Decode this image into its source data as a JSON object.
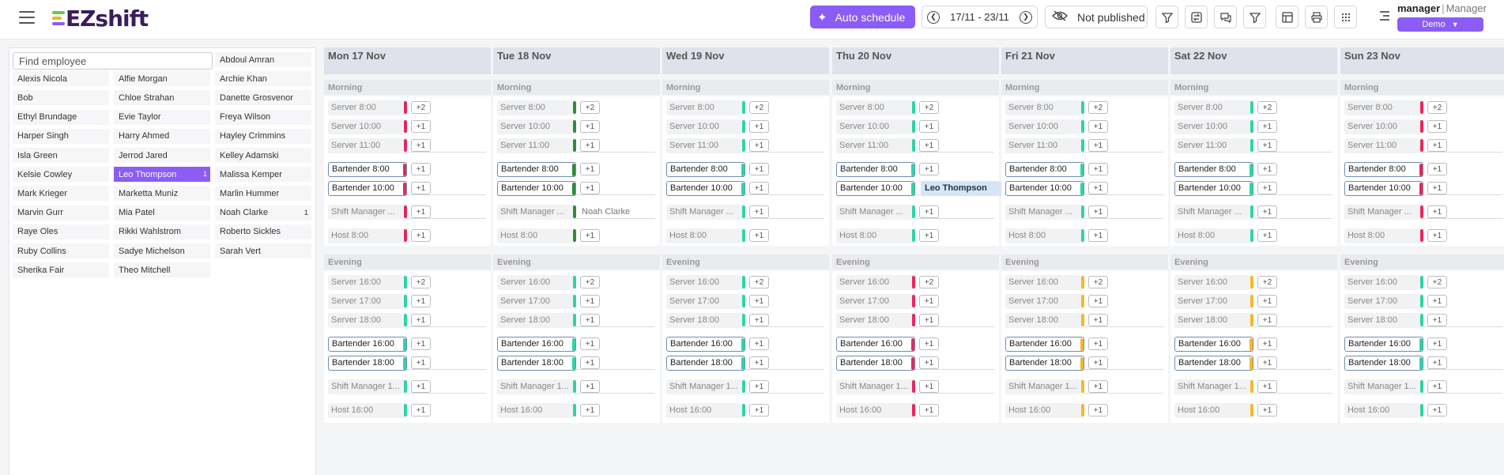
{
  "header": {
    "app_name": "EZshift",
    "auto_schedule_label": "Auto schedule",
    "date_range": "17/11 - 23/11",
    "publish_label": "Not published",
    "user_name": "manager",
    "user_role": "Manager",
    "org_label": "Demo"
  },
  "employee_panel": {
    "search_placeholder": "Find employee",
    "employees": [
      {
        "name": "Abdoul Amran"
      },
      {
        "name": "Alexis Nicola"
      },
      {
        "name": "Alfie Morgan"
      },
      {
        "name": "Archie Khan"
      },
      {
        "name": "Bob"
      },
      {
        "name": "Chloe Strahan"
      },
      {
        "name": "Danette Grosvenor"
      },
      {
        "name": "Ethyl Brundage"
      },
      {
        "name": "Evie Taylor"
      },
      {
        "name": "Freya Wilson"
      },
      {
        "name": "Harper Singh"
      },
      {
        "name": "Harry Ahmed"
      },
      {
        "name": "Hayley Crimmins"
      },
      {
        "name": "Isla Green"
      },
      {
        "name": "Jerrod Jared"
      },
      {
        "name": "Kelley Adamski"
      },
      {
        "name": "Kelsie Cowley"
      },
      {
        "name": "Leo Thompson",
        "count": "1",
        "selected": true
      },
      {
        "name": "Malissa Kemper"
      },
      {
        "name": "Mark Krieger"
      },
      {
        "name": "Marketta Muniz"
      },
      {
        "name": "Marlin Hummer"
      },
      {
        "name": "Marvin Gurr"
      },
      {
        "name": "Mia Patel"
      },
      {
        "name": "Noah Clarke",
        "count": "1"
      },
      {
        "name": "Raye Oles"
      },
      {
        "name": "Rikki Wahlstrom"
      },
      {
        "name": "Roberto Sickles"
      },
      {
        "name": "Ruby Collins"
      },
      {
        "name": "Sadye Michelson"
      },
      {
        "name": "Sarah Vert"
      },
      {
        "name": "Sherika Fair"
      },
      {
        "name": "Theo Mitchell"
      }
    ]
  },
  "segments": {
    "morning": "Morning",
    "evening": "Evening"
  },
  "shift_labels": {
    "morning": [
      "Server 8:00",
      "Server 10:00",
      "Server 11:00",
      "Bartender 8:00",
      "Bartender 10:00",
      "Shift Manager ...",
      "Host 8:00"
    ],
    "evening": [
      "Server 16:00",
      "Server 17:00",
      "Server 18:00",
      "Bartender 16:00",
      "Bartender 18:00",
      "Shift Manager 1...",
      "Host 16:00"
    ],
    "morning_plus": [
      "+2",
      "+1",
      "+1",
      "+1",
      "+1",
      "+1",
      "+1"
    ],
    "evening_plus": [
      "+2",
      "+1",
      "+1",
      "+1",
      "+1",
      "+1",
      "+1"
    ]
  },
  "colors": {
    "accent": "#8b5cf6",
    "status_red": "#e8275a",
    "status_green": "#2e8b3e",
    "status_teal": "#2dd4a6",
    "status_yellow": "#f6b72a"
  },
  "days": [
    {
      "label": "Mon 17 Nov",
      "morning_color": "#e8275a",
      "evening_color": "#2dd4a6"
    },
    {
      "label": "Tue 18 Nov",
      "morning_color": "#2e8b3e",
      "evening_color": "#2dd4a6",
      "assigned": {
        "morning_5": {
          "name": "Noah Clarke",
          "chip": false
        }
      }
    },
    {
      "label": "Wed 19 Nov",
      "morning_color": "#2dd4a6",
      "evening_color": "#2dd4a6"
    },
    {
      "label": "Thu 20 Nov",
      "morning_color": "#2dd4a6",
      "evening_color": "#e8275a",
      "assigned": {
        "morning_4": {
          "name": "Leo Thompson",
          "chip": true
        }
      }
    },
    {
      "label": "Fri 21 Nov",
      "morning_color": "#2dd4a6",
      "evening_color": "#f6b72a"
    },
    {
      "label": "Sat 22 Nov",
      "morning_color": "#2dd4a6",
      "evening_color": "#f6b72a"
    },
    {
      "label": "Sun 23 Nov",
      "morning_color": "#e8275a",
      "evening_color": "#2dd4a6"
    }
  ]
}
